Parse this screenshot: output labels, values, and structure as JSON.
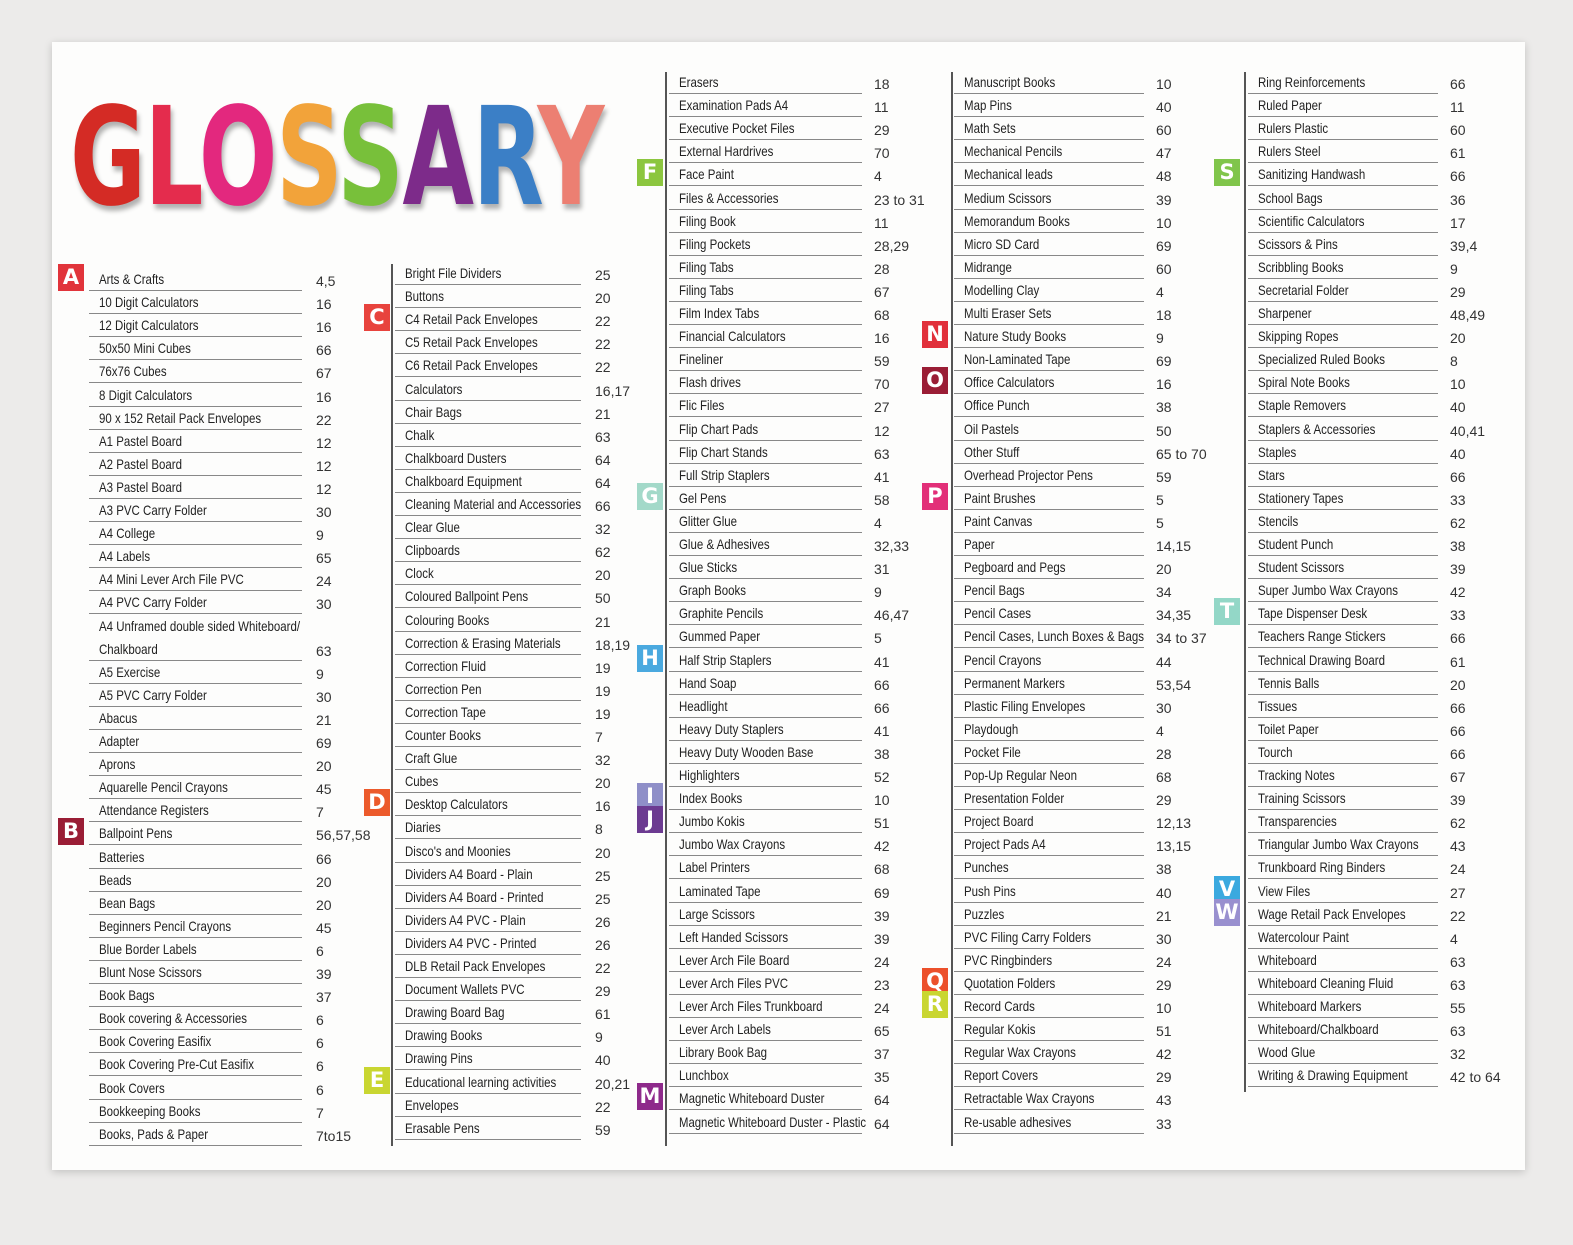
{
  "title": {
    "text": "GLOSSARY",
    "letter_colors": [
      "#d42b25",
      "#e42c4d",
      "#e3287e",
      "#f2a33a",
      "#78c03a",
      "#7d2b8a",
      "#3b7fc6",
      "#ec7f72"
    ]
  },
  "columns": [
    {
      "items": [
        {
          "name": "Arts & Crafts",
          "page": "4,5",
          "letter": "A",
          "color": "#e1343b"
        },
        {
          "name": "10 Digit Calculators",
          "page": "16"
        },
        {
          "name": "12 Digit Calculators",
          "page": "16"
        },
        {
          "name": "50x50 Mini Cubes",
          "page": "66"
        },
        {
          "name": "76x76 Cubes",
          "page": "67"
        },
        {
          "name": "8 Digit Calculators",
          "page": "16"
        },
        {
          "name": "90 x 152 Retail Pack Envelopes",
          "page": "22"
        },
        {
          "name": "A1 Pastel  Board",
          "page": "12"
        },
        {
          "name": "A2 Pastel Board",
          "page": "12"
        },
        {
          "name": "A3 Pastel Board",
          "page": "12"
        },
        {
          "name": "A3 PVC Carry Folder",
          "page": "30"
        },
        {
          "name": "A4 College",
          "page": "9"
        },
        {
          "name": "A4 Labels",
          "page": "65"
        },
        {
          "name": "A4 Mini Lever Arch File PVC",
          "page": "24"
        },
        {
          "name": "A4 PVC Carry Folder",
          "page": "30"
        },
        {
          "name": "A4 Unframed double sided Whiteboard/",
          "page": ""
        },
        {
          "name": "Chalkboard",
          "page": "63"
        },
        {
          "name": "A5 Exercise",
          "page": "9"
        },
        {
          "name": "A5 PVC Carry Folder",
          "page": "30"
        },
        {
          "name": "Abacus",
          "page": "21"
        },
        {
          "name": "Adapter",
          "page": "69"
        },
        {
          "name": "Aprons",
          "page": "20"
        },
        {
          "name": "Aquarelle Pencil Crayons",
          "page": "45"
        },
        {
          "name": "Attendance Registers",
          "page": "7"
        },
        {
          "name": "Ballpoint Pens",
          "page": "56,57,58",
          "letter": "B",
          "color": "#9a1d35"
        },
        {
          "name": "Batteries",
          "page": "66"
        },
        {
          "name": "Beads",
          "page": "20"
        },
        {
          "name": "Bean Bags",
          "page": "20"
        },
        {
          "name": "Beginners Pencil Crayons",
          "page": "45"
        },
        {
          "name": "Blue Border Labels",
          "page": "6"
        },
        {
          "name": "Blunt Nose Scissors",
          "page": "39"
        },
        {
          "name": "Book Bags",
          "page": "37"
        },
        {
          "name": "Book covering & Accessories",
          "page": "6"
        },
        {
          "name": "Book Covering Easifix",
          "page": "6"
        },
        {
          "name": "Book Covering Pre-Cut Easifix",
          "page": "6"
        },
        {
          "name": "Book Covers",
          "page": "6"
        },
        {
          "name": "Bookkeeping Books",
          "page": "7"
        },
        {
          "name": "Books, Pads & Paper",
          "page": "7to15"
        }
      ]
    },
    {
      "items": [
        {
          "name": "Bright File Dividers",
          "page": "25"
        },
        {
          "name": "Buttons",
          "page": "20"
        },
        {
          "name": "C4 Retail Pack Envelopes",
          "page": "22",
          "letter": "C",
          "color": "#e8433d"
        },
        {
          "name": "C5 Retail Pack Envelopes",
          "page": "22"
        },
        {
          "name": "C6 Retail Pack Envelopes",
          "page": "22"
        },
        {
          "name": "Calculators",
          "page": "16,17"
        },
        {
          "name": "Chair Bags",
          "page": "21"
        },
        {
          "name": "Chalk",
          "page": "63"
        },
        {
          "name": "Chalkboard Dusters",
          "page": "64"
        },
        {
          "name": "Chalkboard Equipment",
          "page": "64"
        },
        {
          "name": "Cleaning Material and Accessories",
          "page": "66"
        },
        {
          "name": "Clear Glue",
          "page": "32"
        },
        {
          "name": "Clipboards",
          "page": "62"
        },
        {
          "name": "Clock",
          "page": "20"
        },
        {
          "name": "Coloured Ballpoint Pens",
          "page": "50"
        },
        {
          "name": "Colouring Books",
          "page": "21"
        },
        {
          "name": "Correction & Erasing Materials",
          "page": "18,19"
        },
        {
          "name": "Correction Fluid",
          "page": "19"
        },
        {
          "name": "Correction Pen",
          "page": "19"
        },
        {
          "name": "Correction Tape",
          "page": "19"
        },
        {
          "name": "Counter Books",
          "page": "7"
        },
        {
          "name": "Craft Glue",
          "page": "32"
        },
        {
          "name": "Cubes",
          "page": "20"
        },
        {
          "name": "Desktop Calculators",
          "page": "16",
          "letter": "D",
          "color": "#ec5a2b"
        },
        {
          "name": "Diaries",
          "page": "8"
        },
        {
          "name": "Disco's and Moonies",
          "page": "20"
        },
        {
          "name": "Dividers A4 Board - Plain",
          "page": "25"
        },
        {
          "name": "Dividers A4 Board - Printed",
          "page": "25"
        },
        {
          "name": "Dividers A4 PVC - Plain",
          "page": "26"
        },
        {
          "name": "Dividers A4 PVC - Printed",
          "page": "26"
        },
        {
          "name": "DLB Retail Pack Envelopes",
          "page": "22"
        },
        {
          "name": "Document Wallets PVC",
          "page": "29"
        },
        {
          "name": "Drawing Board Bag",
          "page": "61"
        },
        {
          "name": "Drawing Books",
          "page": "9"
        },
        {
          "name": "Drawing Pins",
          "page": "40"
        },
        {
          "name": "Educational learning activities",
          "page": "20,21",
          "letter": "E",
          "color": "#c9d631"
        },
        {
          "name": "Envelopes",
          "page": "22"
        },
        {
          "name": "Erasable Pens",
          "page": "59"
        }
      ]
    },
    {
      "items": [
        {
          "name": "Erasers",
          "page": "18"
        },
        {
          "name": "Examination Pads A4",
          "page": "11"
        },
        {
          "name": "Executive Pocket Files",
          "page": "29"
        },
        {
          "name": "External Hardrives",
          "page": "70"
        },
        {
          "name": "Face Paint",
          "page": "4",
          "letter": "F",
          "color": "#8cc63f"
        },
        {
          "name": "Files & Accessories",
          "page": "23 to 31"
        },
        {
          "name": "Filing Book",
          "page": "11"
        },
        {
          "name": "Filing Pockets",
          "page": "28,29"
        },
        {
          "name": "Filing Tabs",
          "page": "28"
        },
        {
          "name": "Filing Tabs",
          "page": "67"
        },
        {
          "name": "Film Index Tabs",
          "page": "68"
        },
        {
          "name": "Financial Calculators",
          "page": "16"
        },
        {
          "name": "Fineliner",
          "page": "59"
        },
        {
          "name": "Flash drives",
          "page": "70"
        },
        {
          "name": "Flic Files",
          "page": "27"
        },
        {
          "name": "Flip Chart Pads",
          "page": "12"
        },
        {
          "name": "Flip Chart Stands",
          "page": "63"
        },
        {
          "name": "Full Strip Staplers",
          "page": "41"
        },
        {
          "name": "Gel Pens",
          "page": "58",
          "letter": "G",
          "color": "#a3d9c9"
        },
        {
          "name": "Glitter Glue",
          "page": "4"
        },
        {
          "name": "Glue & Adhesives",
          "page": "32,33"
        },
        {
          "name": "Glue Sticks",
          "page": "31"
        },
        {
          "name": "Graph Books",
          "page": "9"
        },
        {
          "name": "Graphite Pencils",
          "page": "46,47"
        },
        {
          "name": "Gummed Paper",
          "page": "5"
        },
        {
          "name": "Half Strip Staplers",
          "page": "41",
          "letter": "H",
          "color": "#4aa9df"
        },
        {
          "name": "Hand Soap",
          "page": "66"
        },
        {
          "name": "Headlight",
          "page": "66"
        },
        {
          "name": "Heavy Duty Staplers",
          "page": "41"
        },
        {
          "name": "Heavy Duty Wooden Base",
          "page": "38"
        },
        {
          "name": "Highlighters",
          "page": "52"
        },
        {
          "name": "Index Books",
          "page": "10",
          "letter": "I",
          "color": "#8f8fc8"
        },
        {
          "name": "Jumbo Kokis",
          "page": "51",
          "letter": "J",
          "color": "#6c3b91"
        },
        {
          "name": "Jumbo Wax Crayons",
          "page": "42"
        },
        {
          "name": "Label Printers",
          "page": "68"
        },
        {
          "name": "Laminated Tape",
          "page": "69"
        },
        {
          "name": "Large Scissors",
          "page": "39"
        },
        {
          "name": "Left Handed Scissors",
          "page": "39"
        },
        {
          "name": "Lever Arch File Board",
          "page": "24"
        },
        {
          "name": "Lever Arch Files PVC",
          "page": "23"
        },
        {
          "name": "Lever Arch Files Trunkboard",
          "page": "24"
        },
        {
          "name": "Lever Arch Labels",
          "page": "65"
        },
        {
          "name": "Library Book Bag",
          "page": "37"
        },
        {
          "name": "Lunchbox",
          "page": "35"
        },
        {
          "name": "Magnetic Whiteboard Duster",
          "page": "64",
          "letter": "M",
          "color": "#8e2a8b"
        },
        {
          "name": "Magnetic Whiteboard Duster - Plastic",
          "page": "64"
        }
      ]
    },
    {
      "items": [
        {
          "name": "Manuscript Books",
          "page": "10"
        },
        {
          "name": "Map Pins",
          "page": "40"
        },
        {
          "name": "Math Sets",
          "page": "60"
        },
        {
          "name": "Mechanical  Pencils",
          "page": "47"
        },
        {
          "name": "Mechanical leads",
          "page": "48"
        },
        {
          "name": "Medium Scissors",
          "page": "39"
        },
        {
          "name": "Memorandum Books",
          "page": "10"
        },
        {
          "name": "Micro SD Card",
          "page": "69"
        },
        {
          "name": "Midrange",
          "page": "60"
        },
        {
          "name": "Modelling Clay",
          "page": "4"
        },
        {
          "name": "Multi Eraser Sets",
          "page": "18"
        },
        {
          "name": "Nature Study Books",
          "page": "9",
          "letter": "N",
          "color": "#e1303b"
        },
        {
          "name": "Non-Laminated Tape",
          "page": "69"
        },
        {
          "name": "Office Calculators",
          "page": "16",
          "letter": "O",
          "color": "#9a1d35"
        },
        {
          "name": "Office Punch",
          "page": "38"
        },
        {
          "name": "Oil Pastels",
          "page": "50"
        },
        {
          "name": "Other Stuff",
          "page": "65 to 70"
        },
        {
          "name": "Overhead Projector Pens",
          "page": "59"
        },
        {
          "name": "Paint Brushes",
          "page": "5",
          "letter": "P",
          "color": "#e22f78"
        },
        {
          "name": "Paint Canvas",
          "page": "5"
        },
        {
          "name": "Paper",
          "page": "14,15"
        },
        {
          "name": "Pegboard and Pegs",
          "page": "20"
        },
        {
          "name": "Pencil Bags",
          "page": "34"
        },
        {
          "name": "Pencil Cases",
          "page": "34,35"
        },
        {
          "name": "Pencil Cases, Lunch Boxes & Bags",
          "page": "34 to 37"
        },
        {
          "name": "Pencil Crayons",
          "page": "44"
        },
        {
          "name": "Permanent Markers",
          "page": "53,54"
        },
        {
          "name": "Plastic Filing Envelopes",
          "page": "30"
        },
        {
          "name": "Playdough",
          "page": "4"
        },
        {
          "name": "Pocket File",
          "page": "28"
        },
        {
          "name": "Pop-Up Regular Neon",
          "page": "68"
        },
        {
          "name": "Presentation Folder",
          "page": "29"
        },
        {
          "name": "Project Board",
          "page": "12,13"
        },
        {
          "name": "Project Pads A4",
          "page": "13,15"
        },
        {
          "name": "Punches",
          "page": "38"
        },
        {
          "name": "Push Pins",
          "page": "40"
        },
        {
          "name": "Puzzles",
          "page": "21"
        },
        {
          "name": "PVC Filing Carry Folders",
          "page": "30"
        },
        {
          "name": "PVC Ringbinders",
          "page": "24"
        },
        {
          "name": "Quotation Folders",
          "page": "29",
          "letter": "Q",
          "color": "#ec502b"
        },
        {
          "name": "Record Cards",
          "page": "10",
          "letter": "R",
          "color": "#c9d631"
        },
        {
          "name": "Regular Kokis",
          "page": "51"
        },
        {
          "name": "Regular Wax Crayons",
          "page": "42"
        },
        {
          "name": "Report Covers",
          "page": "29"
        },
        {
          "name": "Retractable Wax Crayons",
          "page": "43"
        },
        {
          "name": "Re-usable adhesives",
          "page": "33"
        }
      ]
    },
    {
      "items": [
        {
          "name": "Ring Reinforcements",
          "page": "66"
        },
        {
          "name": "Ruled Paper",
          "page": "11"
        },
        {
          "name": "Rulers Plastic",
          "page": "60"
        },
        {
          "name": "Rulers Steel",
          "page": "61"
        },
        {
          "name": "Sanitizing Handwash",
          "page": "66",
          "letter": "S",
          "color": "#80c54b"
        },
        {
          "name": "School Bags",
          "page": "36"
        },
        {
          "name": "Scientific Calculators",
          "page": "17"
        },
        {
          "name": "Scissors & Pins",
          "page": "39,4"
        },
        {
          "name": "Scribbling Books",
          "page": "9"
        },
        {
          "name": "Secretarial Folder",
          "page": "29"
        },
        {
          "name": "Sharpener",
          "page": "48,49"
        },
        {
          "name": "Skipping Ropes",
          "page": "20"
        },
        {
          "name": "Specialized Ruled Books",
          "page": "8"
        },
        {
          "name": "Spiral Note Books",
          "page": "10"
        },
        {
          "name": "Staple Removers",
          "page": "40"
        },
        {
          "name": "Staplers & Accessories",
          "page": "40,41"
        },
        {
          "name": "Staples",
          "page": "40"
        },
        {
          "name": "Stars",
          "page": "66"
        },
        {
          "name": "Stationery Tapes",
          "page": "33"
        },
        {
          "name": "Stencils",
          "page": "62"
        },
        {
          "name": "Student Punch",
          "page": "38"
        },
        {
          "name": "Student Scissors",
          "page": "39"
        },
        {
          "name": "Super Jumbo Wax Crayons",
          "page": "42"
        },
        {
          "name": "Tape Dispenser Desk",
          "page": "33",
          "letter": "T",
          "color": "#93d7c7"
        },
        {
          "name": "Teachers Range Stickers",
          "page": "66"
        },
        {
          "name": "Technical Drawing Board",
          "page": "61"
        },
        {
          "name": "Tennis Balls",
          "page": "20"
        },
        {
          "name": "Tissues",
          "page": "66"
        },
        {
          "name": "Toilet Paper",
          "page": "66"
        },
        {
          "name": "Tourch",
          "page": "66"
        },
        {
          "name": "Tracking Notes",
          "page": "67"
        },
        {
          "name": "Training Scissors",
          "page": "39"
        },
        {
          "name": "Transparencies",
          "page": "62"
        },
        {
          "name": "Triangular Jumbo Wax Crayons",
          "page": "43"
        },
        {
          "name": "Trunkboard Ring Binders",
          "page": "24"
        },
        {
          "name": "View Files",
          "page": "27",
          "letter": "V",
          "color": "#3ba9df"
        },
        {
          "name": "Wage Retail Pack Envelopes",
          "page": "22",
          "letter": "W",
          "color": "#9990cf"
        },
        {
          "name": "Watercolour Paint",
          "page": "4"
        },
        {
          "name": "Whiteboard",
          "page": "63"
        },
        {
          "name": "Whiteboard Cleaning Fluid",
          "page": "63"
        },
        {
          "name": "Whiteboard Markers",
          "page": "55"
        },
        {
          "name": "Whiteboard/Chalkboard",
          "page": "63"
        },
        {
          "name": "Wood Glue",
          "page": "32"
        },
        {
          "name": "Writing & Drawing Equipment",
          "page": "42 to 64"
        }
      ]
    }
  ]
}
